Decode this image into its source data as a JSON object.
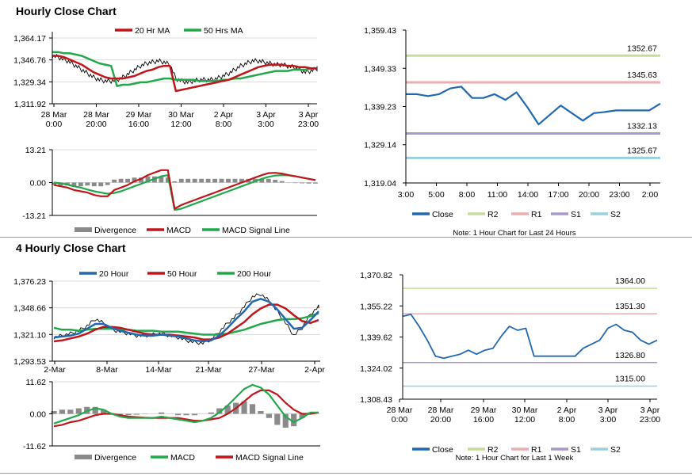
{
  "colors": {
    "green": "#21a84a",
    "red": "#c0161b",
    "blue": "#2168b0",
    "grey": "#8a8a8a",
    "r2": "#c6dc9a",
    "r1": "#e8aeb0",
    "s1": "#a89ac8",
    "s2": "#9ad0dc",
    "grid": "#d9d9d9",
    "priceBlack": "#000000"
  },
  "titles": {
    "hourly": "Hourly Close Chart",
    "four_hourly": "4 Hourly Close Chart"
  },
  "notes": {
    "hourly": "Note: 1 Hour Chart for Last 24 Hours",
    "week": "Note: 1 Hour Chart for Last 1 Week"
  },
  "chart_data": [
    {
      "id": "hourly_price",
      "type": "line",
      "title": "",
      "legend": [
        "20 Hr MA",
        "50 Hrs MA"
      ],
      "x_ticks": [
        "28 Mar\n0:00",
        "28 Mar\n20:00",
        "29 Mar\n16:00",
        "30 Mar\n12:00",
        "2 Apr\n8:00",
        "3 Apr\n3:00",
        "3 Apr\n23:00"
      ],
      "y_ticks": [
        "1,364.17",
        "1,346.76",
        "1,329.34",
        "1,311.92"
      ],
      "ylim": [
        1311.92,
        1364.17
      ],
      "series": [
        {
          "name": "Price",
          "color": "priceBlack",
          "values": [
            1350,
            1349,
            1347,
            1345,
            1342,
            1339,
            1336,
            1333,
            1331,
            1330,
            1330,
            1331,
            1333,
            1336,
            1339,
            1342,
            1344,
            1345,
            1346,
            1345,
            1343,
            1332,
            1330,
            1329,
            1330,
            1331,
            1331,
            1331,
            1332,
            1334,
            1336,
            1339,
            1342,
            1344,
            1346,
            1346,
            1345,
            1344,
            1343,
            1343,
            1342,
            1341,
            1339,
            1337,
            1338,
            1340
          ]
        },
        {
          "name": "20 Hr MA",
          "color": "red",
          "values": [
            1350,
            1350,
            1349,
            1347,
            1345,
            1343,
            1340,
            1337,
            1335,
            1333,
            1332,
            1332,
            1332,
            1333,
            1334,
            1336,
            1338,
            1339,
            1341,
            1342,
            1342,
            1322,
            1323,
            1324,
            1325,
            1326,
            1327,
            1328,
            1329,
            1330,
            1331,
            1333,
            1335,
            1337,
            1339,
            1341,
            1342,
            1343,
            1343,
            1343,
            1342,
            1342,
            1341,
            1341,
            1340,
            1340
          ]
        },
        {
          "name": "50 Hrs MA",
          "color": "green",
          "values": [
            1353,
            1353,
            1352,
            1352,
            1351,
            1350,
            1348,
            1346,
            1344,
            1343,
            1342,
            1326,
            1327,
            1327,
            1328,
            1329,
            1329,
            1330,
            1331,
            1332,
            1332,
            1331,
            1331,
            1331,
            1331,
            1330,
            1330,
            1330,
            1330,
            1331,
            1331,
            1332,
            1332,
            1333,
            1334,
            1335,
            1336,
            1337,
            1338,
            1338,
            1338,
            1339,
            1339,
            1339,
            1340,
            1340
          ]
        }
      ]
    },
    {
      "id": "hourly_macd",
      "type": "line",
      "legend": [
        "Divergence",
        "MACD",
        "MACD Signal Line"
      ],
      "y_ticks": [
        "13.21",
        "0.00",
        "-13.21"
      ],
      "ylim": [
        -13.21,
        13.21
      ],
      "series": [
        {
          "name": "MACD",
          "color": "red",
          "values": [
            -1,
            -1.5,
            -2,
            -3,
            -3.5,
            -4,
            -5,
            -5.5,
            -5.5,
            -3,
            -2,
            -1,
            0.5,
            1.5,
            3,
            4,
            5,
            5,
            -10.5,
            -9,
            -8,
            -7,
            -6,
            -5,
            -4,
            -3,
            -2,
            -1,
            0,
            1,
            2,
            3,
            3.8,
            3.9,
            3.6,
            3,
            2.5,
            2,
            1.5,
            1
          ]
        },
        {
          "name": "MACD Signal Line",
          "color": "green",
          "values": [
            0,
            -0.3,
            -0.8,
            -1.5,
            -2,
            -2.8,
            -3.5,
            -4,
            -4.5,
            -4.2,
            -3.5,
            -2.5,
            -1.5,
            -0.5,
            0.5,
            1.5,
            2.5,
            3,
            -11,
            -10.5,
            -9.5,
            -8.5,
            -7.5,
            -6.5,
            -5.5,
            -4.5,
            -3.5,
            -2.5,
            -1.5,
            -0.5,
            0.5,
            1.5,
            2.3,
            2.8,
            3,
            2.9,
            2.5,
            2,
            1.5,
            1
          ]
        },
        {
          "name": "Divergence",
          "color": "grey",
          "values": [
            -1,
            -1.2,
            -1.2,
            -1.5,
            -1.5,
            -1.2,
            -1.5,
            -1.5,
            -1,
            1.2,
            1.5,
            1.5,
            2,
            2,
            2.5,
            2.5,
            2.5,
            2,
            0.5,
            1.5,
            1.5,
            1.5,
            1.5,
            1.5,
            1.5,
            1.5,
            1.5,
            1.5,
            1.5,
            1.5,
            1.5,
            1.5,
            1.5,
            1.1,
            0.6,
            0.1,
            -0.2,
            -0.3,
            -0.4,
            -0.4
          ]
        }
      ]
    },
    {
      "id": "hourly_levels",
      "type": "line",
      "legend": [
        "Close",
        "R2",
        "R1",
        "S1",
        "S2"
      ],
      "x_ticks": [
        "3:00",
        "5:00",
        "8:00",
        "11:00",
        "14:00",
        "17:00",
        "20:00",
        "23:00",
        "2:00"
      ],
      "y_ticks": [
        "1,359.43",
        "1,349.33",
        "1,339.23",
        "1,329.14",
        "1,319.04"
      ],
      "ylim": [
        1319.04,
        1359.43
      ],
      "levels": [
        {
          "name": "R2",
          "value": 1352.67,
          "label": "1352.67"
        },
        {
          "name": "R1",
          "value": 1345.63,
          "label": "1345.63"
        },
        {
          "name": "S1",
          "value": 1332.13,
          "label": "1332.13"
        },
        {
          "name": "S2",
          "value": 1325.67,
          "label": "1325.67"
        }
      ],
      "series": [
        {
          "name": "Close",
          "color": "blue",
          "values": [
            1342.5,
            1342.5,
            1342,
            1342.5,
            1344,
            1344.5,
            1341.5,
            1341.5,
            1342.5,
            1341,
            1343,
            1339,
            1334.5,
            1337,
            1339.5,
            1337.5,
            1335.5,
            1337.5,
            1337.8,
            1338.2,
            1338.2,
            1338.2,
            1338.2,
            1340
          ]
        }
      ]
    },
    {
      "id": "four_hourly_price",
      "type": "line",
      "legend": [
        "20 Hour",
        "50 Hour",
        "200 Hour"
      ],
      "x_ticks": [
        "2-Mar",
        "8-Mar",
        "14-Mar",
        "21-Mar",
        "27-Mar",
        "2-Apr"
      ],
      "y_ticks": [
        "1,376.23",
        "1,348.66",
        "1,321.10",
        "1,293.53"
      ],
      "ylim": [
        1293.53,
        1376.23
      ],
      "series": [
        {
          "name": "Price",
          "color": "priceBlack",
          "values": [
            1318,
            1320,
            1322,
            1325,
            1330,
            1337,
            1333,
            1326,
            1324,
            1322,
            1320,
            1320,
            1321,
            1322,
            1320,
            1318,
            1315,
            1313,
            1312,
            1316,
            1324,
            1333,
            1340,
            1350,
            1360,
            1363,
            1356,
            1345,
            1333,
            1320,
            1328,
            1342,
            1350
          ]
        },
        {
          "name": "20 Hour",
          "color": "blue",
          "values": [
            1318,
            1319,
            1320,
            1322,
            1327,
            1332,
            1332,
            1328,
            1325,
            1323,
            1321,
            1320,
            1320,
            1321,
            1320,
            1319,
            1317,
            1315,
            1314,
            1315,
            1320,
            1328,
            1337,
            1345,
            1355,
            1358,
            1355,
            1347,
            1337,
            1327,
            1328,
            1336,
            1345
          ]
        },
        {
          "name": "50 Hour",
          "color": "red",
          "values": [
            1314,
            1315,
            1317,
            1319,
            1322,
            1326,
            1329,
            1329,
            1328,
            1326,
            1324,
            1322,
            1321,
            1321,
            1321,
            1320,
            1319,
            1318,
            1316,
            1316,
            1318,
            1322,
            1328,
            1334,
            1342,
            1348,
            1352,
            1352,
            1348,
            1341,
            1335,
            1333,
            1336
          ]
        },
        {
          "name": "200 Hour",
          "color": "green",
          "values": [
            1328,
            1326,
            1326,
            1325,
            1326,
            1327,
            1327,
            1327,
            1326,
            1326,
            1325,
            1325,
            1325,
            1324,
            1324,
            1324,
            1323,
            1322,
            1321,
            1321,
            1321,
            1322,
            1324,
            1326,
            1329,
            1332,
            1334,
            1336,
            1337,
            1337,
            1338,
            1340,
            1343
          ]
        }
      ]
    },
    {
      "id": "four_hourly_macd",
      "type": "line",
      "legend": [
        "Divergence",
        "MACD",
        "MACD Signal Line"
      ],
      "y_ticks": [
        "11.62",
        "0.00",
        "-11.62"
      ],
      "ylim": [
        -11.62,
        11.62
      ],
      "series": [
        {
          "name": "MACD",
          "color": "green",
          "values": [
            -3.5,
            -2.5,
            -1.5,
            -0.5,
            1,
            2,
            1.5,
            0,
            -1,
            -1.5,
            -1.5,
            -1.5,
            -1.5,
            -1,
            -1.5,
            -2,
            -2.5,
            -3,
            -2.5,
            -1.5,
            0.5,
            3,
            6,
            9,
            10.5,
            9.5,
            7,
            3,
            -1,
            -3,
            -1.5,
            0.5,
            0.5
          ]
        },
        {
          "name": "MACD Signal Line",
          "color": "red",
          "values": [
            -4.5,
            -4,
            -3,
            -2.5,
            -1.5,
            -0.5,
            0,
            0,
            -0.5,
            -1,
            -1.2,
            -1.4,
            -1.5,
            -1.5,
            -1.5,
            -1.5,
            -2,
            -2.5,
            -2.5,
            -2,
            -1.5,
            0,
            2,
            4.5,
            7,
            8.5,
            8.5,
            7,
            4,
            1.5,
            0,
            0,
            0.5
          ]
        },
        {
          "name": "Divergence",
          "color": "grey",
          "values": [
            1,
            1.5,
            1.5,
            2,
            2.5,
            2.5,
            1.5,
            0,
            -0.5,
            -0.5,
            -0.3,
            -0.1,
            0,
            0.5,
            0,
            -0.5,
            -0.5,
            -0.5,
            0,
            0.5,
            2,
            3,
            4,
            4.5,
            3.5,
            1,
            -1.5,
            -4,
            -5,
            -4.5,
            -1.5,
            0.5,
            0
          ]
        }
      ]
    },
    {
      "id": "week_levels",
      "type": "line",
      "legend": [
        "Close",
        "R2",
        "R1",
        "S1",
        "S2"
      ],
      "x_ticks": [
        "28 Mar\n0:00",
        "28 Mar\n20:00",
        "29 Mar\n16:00",
        "30 Mar\n12:00",
        "2 Apr\n8:00",
        "3 Apr\n3:00",
        "3 Apr\n23:00"
      ],
      "y_ticks": [
        "1,370.82",
        "1,355.22",
        "1,339.62",
        "1,324.02",
        "1,308.43"
      ],
      "ylim": [
        1308.43,
        1370.82
      ],
      "levels": [
        {
          "name": "R2",
          "value": 1364.0,
          "label": "1364.00"
        },
        {
          "name": "R1",
          "value": 1351.3,
          "label": "1351.30"
        },
        {
          "name": "S1",
          "value": 1326.8,
          "label": "1326.80"
        },
        {
          "name": "S2",
          "value": 1315.0,
          "label": "1315.00"
        }
      ],
      "series": [
        {
          "name": "Close",
          "color": "blue",
          "values": [
            1350,
            1351,
            1345,
            1338,
            1330,
            1329,
            1330,
            1331,
            1333,
            1331,
            1333,
            1334,
            1340,
            1345,
            1343,
            1344,
            1330,
            1330,
            1330,
            1330,
            1330,
            1330,
            1334,
            1336,
            1338,
            1344,
            1346,
            1343,
            1342,
            1338,
            1336,
            1338
          ]
        }
      ]
    }
  ]
}
